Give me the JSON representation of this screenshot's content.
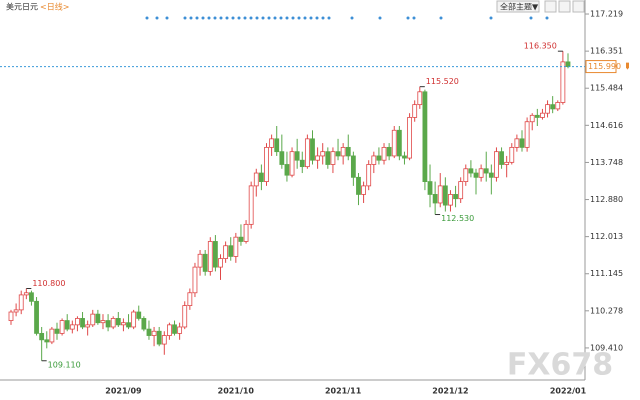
{
  "header": {
    "title": "美元日元",
    "period": "<日线>",
    "theme_button": "全部主题▼"
  },
  "watermark": "FX678",
  "chart_data": {
    "type": "candlestick",
    "categories": [
      null,
      null,
      null,
      null,
      null,
      null,
      null,
      null,
      null,
      null,
      null,
      null,
      null,
      null,
      null,
      null,
      null,
      null,
      null,
      null,
      null,
      null,
      "2021/09",
      null,
      null,
      null,
      null,
      null,
      null,
      null,
      null,
      null,
      null,
      null,
      null,
      null,
      null,
      null,
      null,
      null,
      null,
      null,
      null,
      null,
      "2021/10",
      null,
      null,
      null,
      null,
      null,
      null,
      null,
      null,
      null,
      null,
      null,
      null,
      null,
      null,
      null,
      null,
      null,
      null,
      null,
      null,
      "2021/11",
      null,
      null,
      null,
      null,
      null,
      null,
      null,
      null,
      null,
      null,
      null,
      null,
      null,
      null,
      null,
      null,
      null,
      null,
      null,
      null,
      "2021/12",
      null,
      null,
      null,
      null,
      null,
      null,
      null,
      null,
      null,
      null,
      null,
      null,
      null,
      null,
      null,
      null,
      null,
      null,
      null,
      null,
      null,
      null,
      "2022/01"
    ],
    "ohlc": [
      [
        110.05,
        110.3,
        109.95,
        110.25
      ],
      [
        110.25,
        110.45,
        110.15,
        110.3
      ],
      [
        110.3,
        110.75,
        110.2,
        110.65
      ],
      [
        110.65,
        110.8,
        110.55,
        110.7
      ],
      [
        110.7,
        110.75,
        110.4,
        110.5
      ],
      [
        110.5,
        110.6,
        109.7,
        109.75
      ],
      [
        109.75,
        109.9,
        109.11,
        109.6
      ],
      [
        109.6,
        109.8,
        109.4,
        109.55
      ],
      [
        109.55,
        109.9,
        109.5,
        109.85
      ],
      [
        109.85,
        110.0,
        109.6,
        109.75
      ],
      [
        109.75,
        110.1,
        109.7,
        110.05
      ],
      [
        110.05,
        110.2,
        109.8,
        109.85
      ],
      [
        109.85,
        110.05,
        109.75,
        109.95
      ],
      [
        109.95,
        110.15,
        109.8,
        110.1
      ],
      [
        110.1,
        110.25,
        109.85,
        109.9
      ],
      [
        109.9,
        110.05,
        109.7,
        109.95
      ],
      [
        109.95,
        110.3,
        109.9,
        110.2
      ],
      [
        110.2,
        110.3,
        109.95,
        110.0
      ],
      [
        110.0,
        110.2,
        109.85,
        110.05
      ],
      [
        110.05,
        110.2,
        109.8,
        109.9
      ],
      [
        109.9,
        110.15,
        109.85,
        110.1
      ],
      [
        110.1,
        110.25,
        109.9,
        109.95
      ],
      [
        109.95,
        110.1,
        109.8,
        110.0
      ],
      [
        110.0,
        110.2,
        109.85,
        109.9
      ],
      [
        109.9,
        110.3,
        109.85,
        110.25
      ],
      [
        110.25,
        110.4,
        110.05,
        110.1
      ],
      [
        110.1,
        110.15,
        109.8,
        109.85
      ],
      [
        109.85,
        110.05,
        109.6,
        109.7
      ],
      [
        109.7,
        109.9,
        109.45,
        109.8
      ],
      [
        109.8,
        109.9,
        109.45,
        109.5
      ],
      [
        109.5,
        109.8,
        109.25,
        109.7
      ],
      [
        109.7,
        110.0,
        109.6,
        109.95
      ],
      [
        109.95,
        110.05,
        109.7,
        109.75
      ],
      [
        109.75,
        110.0,
        109.6,
        109.9
      ],
      [
        109.9,
        110.5,
        109.85,
        110.4
      ],
      [
        110.4,
        110.8,
        110.3,
        110.7
      ],
      [
        110.7,
        111.4,
        110.6,
        111.3
      ],
      [
        111.3,
        111.7,
        111.1,
        111.6
      ],
      [
        111.6,
        111.7,
        111.1,
        111.2
      ],
      [
        111.2,
        112.0,
        111.1,
        111.9
      ],
      [
        111.9,
        112.05,
        111.2,
        111.3
      ],
      [
        111.3,
        111.6,
        111.0,
        111.5
      ],
      [
        111.5,
        111.9,
        111.4,
        111.8
      ],
      [
        111.8,
        112.0,
        111.45,
        111.55
      ],
      [
        111.55,
        112.1,
        111.4,
        112.0
      ],
      [
        112.0,
        112.3,
        111.8,
        111.9
      ],
      [
        111.9,
        112.4,
        111.85,
        112.3
      ],
      [
        112.3,
        113.3,
        112.2,
        113.2
      ],
      [
        113.2,
        113.6,
        112.95,
        113.5
      ],
      [
        113.5,
        113.7,
        113.1,
        113.3
      ],
      [
        113.3,
        114.2,
        113.2,
        114.1
      ],
      [
        114.1,
        114.4,
        113.9,
        114.3
      ],
      [
        114.3,
        114.6,
        113.9,
        114.0
      ],
      [
        114.0,
        114.4,
        113.6,
        113.7
      ],
      [
        113.7,
        114.0,
        113.3,
        113.45
      ],
      [
        113.45,
        114.1,
        113.4,
        114.0
      ],
      [
        114.0,
        114.3,
        113.6,
        113.8
      ],
      [
        113.8,
        114.0,
        113.5,
        113.65
      ],
      [
        113.65,
        114.4,
        113.6,
        114.3
      ],
      [
        114.3,
        114.5,
        113.7,
        113.8
      ],
      [
        113.8,
        114.1,
        113.6,
        113.9
      ],
      [
        113.9,
        114.2,
        113.7,
        114.0
      ],
      [
        114.0,
        114.1,
        113.6,
        113.7
      ],
      [
        113.7,
        114.1,
        113.5,
        114.0
      ],
      [
        114.0,
        114.3,
        113.8,
        113.9
      ],
      [
        113.9,
        114.2,
        113.7,
        114.1
      ],
      [
        114.1,
        114.4,
        113.8,
        113.9
      ],
      [
        113.9,
        114.0,
        113.2,
        113.4
      ],
      [
        113.4,
        113.5,
        112.75,
        113.0
      ],
      [
        113.0,
        113.3,
        112.8,
        113.2
      ],
      [
        113.2,
        113.8,
        113.1,
        113.7
      ],
      [
        113.7,
        114.0,
        113.5,
        113.9
      ],
      [
        113.9,
        114.1,
        113.7,
        113.8
      ],
      [
        113.8,
        114.2,
        113.7,
        114.1
      ],
      [
        114.1,
        114.2,
        113.8,
        113.9
      ],
      [
        113.9,
        114.6,
        113.85,
        114.5
      ],
      [
        114.5,
        114.6,
        113.8,
        113.9
      ],
      [
        113.9,
        114.0,
        113.7,
        113.85
      ],
      [
        113.85,
        114.9,
        113.8,
        114.8
      ],
      [
        114.8,
        115.2,
        114.7,
        115.1
      ],
      [
        115.1,
        115.52,
        115.0,
        115.4
      ],
      [
        115.4,
        115.45,
        113.1,
        113.3
      ],
      [
        113.3,
        113.7,
        112.7,
        113.0
      ],
      [
        113.0,
        113.3,
        112.53,
        112.8
      ],
      [
        112.8,
        113.5,
        112.7,
        113.2
      ],
      [
        113.2,
        113.4,
        112.6,
        112.75
      ],
      [
        112.75,
        113.1,
        112.6,
        113.0
      ],
      [
        113.0,
        113.2,
        112.7,
        112.9
      ],
      [
        112.9,
        113.4,
        112.8,
        113.3
      ],
      [
        113.3,
        113.7,
        113.2,
        113.6
      ],
      [
        113.6,
        113.8,
        113.4,
        113.5
      ],
      [
        113.5,
        113.6,
        113.0,
        113.4
      ],
      [
        113.4,
        113.7,
        113.3,
        113.6
      ],
      [
        113.6,
        114.0,
        113.3,
        113.5
      ],
      [
        113.5,
        113.7,
        113.0,
        113.4
      ],
      [
        113.4,
        114.1,
        113.3,
        114.0
      ],
      [
        114.0,
        114.1,
        113.6,
        113.7
      ],
      [
        113.7,
        113.9,
        113.4,
        113.75
      ],
      [
        113.75,
        114.2,
        113.7,
        114.1
      ],
      [
        114.1,
        114.4,
        114.0,
        114.3
      ],
      [
        114.3,
        114.5,
        114.0,
        114.1
      ],
      [
        114.1,
        114.8,
        114.0,
        114.7
      ],
      [
        114.7,
        114.9,
        114.5,
        114.85
      ],
      [
        114.85,
        115.0,
        114.6,
        114.8
      ],
      [
        114.8,
        115.0,
        114.75,
        114.9
      ],
      [
        114.9,
        115.2,
        114.8,
        115.1
      ],
      [
        115.1,
        115.3,
        114.9,
        115.0
      ],
      [
        115.0,
        115.2,
        114.95,
        115.15
      ],
      [
        115.15,
        116.35,
        115.1,
        116.1
      ],
      [
        116.1,
        116.3,
        115.95,
        115.99
      ]
    ],
    "ylim": [
      108.66,
      117.43
    ],
    "yticks": [
      {
        "value": 109.41,
        "label": "109.410"
      },
      {
        "value": 110.278,
        "label": "110.278"
      },
      {
        "value": 111.145,
        "label": "111.145"
      },
      {
        "value": 112.013,
        "label": "112.013"
      },
      {
        "value": 112.88,
        "label": "112.880"
      },
      113.748,
      114.616,
      115.484,
      116.351,
      117.219
    ],
    "annotations": [
      {
        "value": 110.8,
        "label": "110.800"
      },
      {
        "value": 109.11,
        "label": "109.110"
      },
      {
        "value": 115.52,
        "label": "115.520"
      },
      {
        "value": 112.53,
        "label": "112.530"
      },
      {
        "value": 116.35,
        "label": "116.350"
      }
    ],
    "last_price": {
      "value": 115.99,
      "label": "115.990"
    },
    "up_color": "#e04848",
    "down_color": "#5aa84a"
  }
}
